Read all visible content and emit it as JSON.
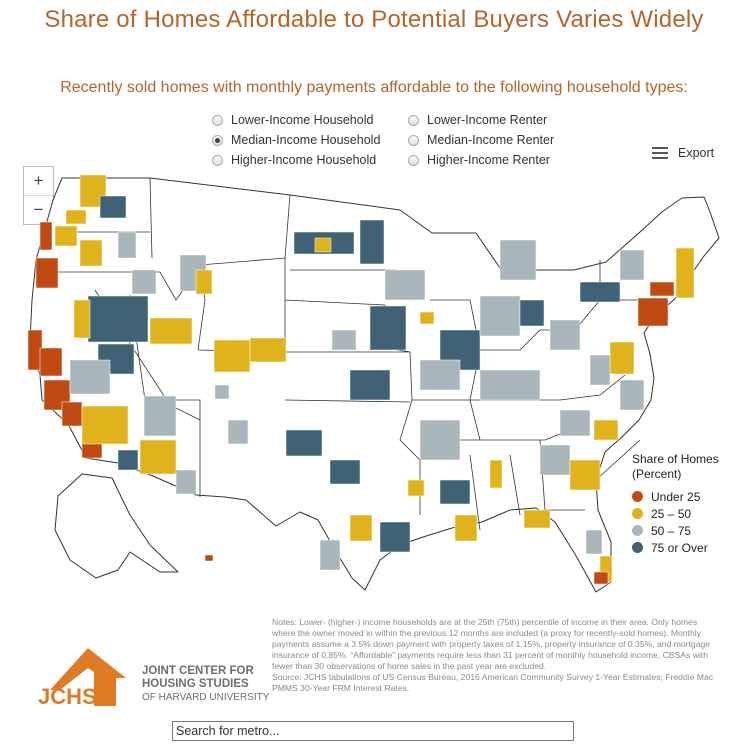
{
  "title": "Share of Homes Affordable to Potential Buyers Varies Widely",
  "subtitle": "Recently sold homes with monthly payments affordable to the following household types:",
  "options": [
    {
      "label": "Lower-Income Household",
      "selected": false
    },
    {
      "label": "Median-Income Household",
      "selected": true
    },
    {
      "label": "Higher-Income Household",
      "selected": false
    },
    {
      "label": "Lower-Income Renter",
      "selected": false
    },
    {
      "label": "Median-Income Renter",
      "selected": false
    },
    {
      "label": "Higher-Income Renter",
      "selected": false
    }
  ],
  "export_label": "Export",
  "zoom": {
    "in": "+",
    "out": "−"
  },
  "legend": {
    "title": "Share of Homes (Percent)",
    "items": [
      {
        "label": "Under 25",
        "color": "#c14a12"
      },
      {
        "label": "25 – 50",
        "color": "#e0b31c"
      },
      {
        "label": "50 – 75",
        "color": "#a9b6bb"
      },
      {
        "label": "75 or Over",
        "color": "#3f6374"
      }
    ]
  },
  "logo": {
    "abbr": "JCHS",
    "line1": "JOINT CENTER FOR",
    "line2": "HOUSING STUDIES",
    "line3": "OF HARVARD UNIVERSITY",
    "color": "#e07b25"
  },
  "notes": "Notes: Lower- (higher-) income households are at the 25th (75th) percentile of income in their area. Only homes where the owner moved in within the previous 12 months are included (a proxy for recently-sold homes). Monthly payments assume a 3.5% down payment with property taxes of 1.15%, property insurance of 0.35%, and mortgage insurance of 0.85%. “Affordable” payments require less than 31 percent of monthly household income. CBSAs with fewer than 30 observations of home sales in the past year are excluded.",
  "source": "Source: JCHS tabulations of US Census Bureau, 2016 American Community Survey 1-Year Estimates; Freddie Mac PMMS 30-Year FRM Interest Rates.",
  "search": {
    "placeholder": "Search for metro..."
  }
}
